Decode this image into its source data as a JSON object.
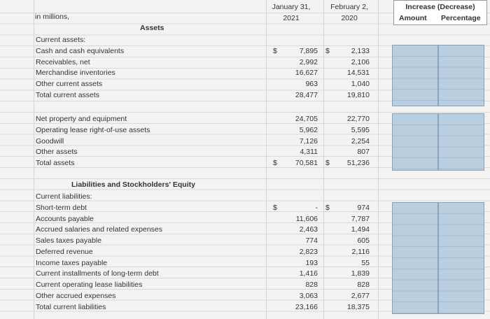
{
  "header": {
    "label": "in millions,",
    "col1": [
      "January 31,",
      "2021"
    ],
    "col2": [
      "February 2,",
      "2020"
    ],
    "change": "Increase (Decrease)",
    "amount": "Amount",
    "percentage": "Percentage"
  },
  "sections": [
    {
      "title": "Assets",
      "rows": [
        {
          "label": "Current assets:"
        },
        {
          "label": "Cash and cash equivalents",
          "jan_sign": "$",
          "jan": "7,895",
          "feb_sign": "$",
          "feb": "2,133"
        },
        {
          "label": "Receivables, net",
          "jan": "2,992",
          "feb": "2,106"
        },
        {
          "label": "Merchandise inventories",
          "jan": "16,627",
          "feb": "14,531"
        },
        {
          "label": "Other current assets",
          "jan": "963",
          "feb": "1,040"
        },
        {
          "label": "Total current assets",
          "jan": "28,477",
          "feb": "19,810"
        }
      ]
    },
    {
      "rows": [
        {
          "label": "Net property and equipment",
          "jan": "24,705",
          "feb": "22,770"
        },
        {
          "label": "Operating lease right-of-use assets",
          "jan": "5,962",
          "feb": "5,595"
        },
        {
          "label": "Goodwill",
          "jan": "7,126",
          "feb": "2,254"
        },
        {
          "label": "Other assets",
          "jan": "4,311",
          "feb": "807"
        },
        {
          "label": "Total assets",
          "jan_sign": "$",
          "jan": "70,581",
          "feb_sign": "$",
          "feb": "51,236"
        }
      ]
    },
    {
      "title": "Liabilities and Stockholders' Equity",
      "rows": [
        {
          "label": "Current liabilities:"
        },
        {
          "label": "Short-term debt",
          "jan_sign": "$",
          "jan": "-",
          "feb_sign": "$",
          "feb": "974"
        },
        {
          "label": "Accounts payable",
          "jan": "11,606",
          "feb": "7,787"
        },
        {
          "label": "Accrued salaries and related expenses",
          "jan": "2,463",
          "feb": "1,494"
        },
        {
          "label": "Sales taxes payable",
          "jan": "774",
          "feb": "605"
        },
        {
          "label": "Deferred revenue",
          "jan": "2,823",
          "feb": "2,116"
        },
        {
          "label": "Income taxes payable",
          "jan": "193",
          "feb": "55"
        },
        {
          "label": "Current installments of long-term debt",
          "jan": "1,416",
          "feb": "1,839"
        },
        {
          "label": "Current operating lease liabilities",
          "jan": "828",
          "feb": "828"
        },
        {
          "label": "Other accrued expenses",
          "jan": "3,063",
          "feb": "2,677"
        },
        {
          "label": "Total current liabilities",
          "jan": "23,166",
          "feb": "18,375"
        }
      ]
    }
  ]
}
